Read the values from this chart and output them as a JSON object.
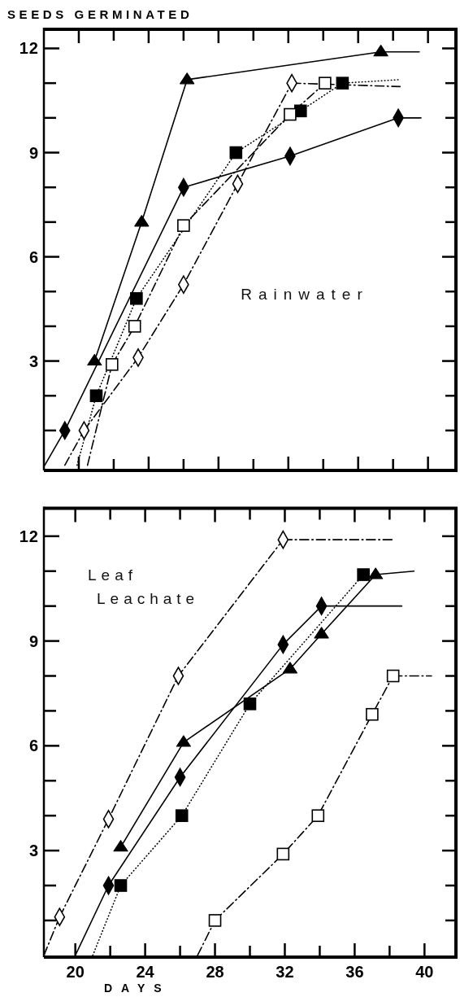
{
  "chart_data": [
    {
      "type": "line",
      "ylabel": "SEEDS GERMINATED",
      "annotations": [
        "Rainwater"
      ],
      "xlim": [
        18.0,
        41.6
      ],
      "ylim": [
        -0.15,
        12.55
      ],
      "tick_labels": "y",
      "xticks": [
        20,
        {
          "value": 22,
          "label": null
        },
        24,
        {
          "value": 26,
          "label": null
        },
        28,
        {
          "value": 30,
          "label": null
        },
        32,
        {
          "value": 34,
          "label": null
        },
        36,
        {
          "value": 38,
          "label": null
        },
        40
      ],
      "yticks": [
        {
          "value": 1,
          "label": null
        },
        {
          "value": 2,
          "label": null
        },
        3,
        {
          "value": 4,
          "label": null
        },
        {
          "value": 5,
          "label": null
        },
        6,
        {
          "value": 7,
          "label": null
        },
        {
          "value": 8,
          "label": null
        },
        9,
        {
          "value": 10,
          "label": null
        },
        {
          "value": 11,
          "label": null
        },
        12
      ],
      "series": [
        {
          "color": "#000000",
          "marker": "triangle",
          "line_style": "solid",
          "x": [
            20.9,
            23.6,
            26.2,
            37.3
          ],
          "values": [
            3,
            7,
            11.1,
            11.9
          ]
        },
        {
          "color": "#000000",
          "marker": "none",
          "line_style": "solid",
          "x": [
            37.3,
            39.5
          ],
          "values": [
            11.9,
            11.9
          ]
        },
        {
          "color": "#000000",
          "marker": "diamond",
          "line_style": "solid",
          "x": [
            19.2,
            26.0,
            32.1,
            38.3
          ],
          "values": [
            1,
            8,
            8.9,
            10
          ]
        },
        {
          "color": "#000000",
          "marker": "none",
          "line_style": "solid",
          "x": [
            18.05,
            19.2
          ],
          "values": [
            0,
            1
          ]
        },
        {
          "color": "#000000",
          "marker": "none",
          "line_style": "solid",
          "x": [
            38.3,
            39.6
          ],
          "values": [
            10,
            10
          ]
        },
        {
          "color": "#000000",
          "marker": "square",
          "line_style": "dotted",
          "x": [
            21.0,
            23.3,
            29.0,
            32.7,
            35.1
          ],
          "values": [
            2,
            4.8,
            9,
            10.2,
            11
          ]
        },
        {
          "color": "#000000",
          "marker": "none",
          "line_style": "dotted",
          "x": [
            19.9,
            21.0
          ],
          "values": [
            0,
            2
          ]
        },
        {
          "color": "#000000",
          "marker": "none",
          "line_style": "dotted",
          "x": [
            35.1,
            38.4
          ],
          "values": [
            11,
            11.1
          ]
        },
        {
          "color": "#000000",
          "colors": [
            "#ffffff",
            "#ffffff",
            "#ffffff",
            "#ffffff",
            "#ffffff"
          ],
          "marker": "square",
          "line_style": "dashdot",
          "x": [
            21.9,
            23.2,
            26.0,
            32.1,
            34.1
          ],
          "values": [
            2.9,
            4,
            6.9,
            10.1,
            11
          ]
        },
        {
          "color": "#000000",
          "marker": "none",
          "line_style": "dashdot",
          "x": [
            20.5,
            21.9
          ],
          "values": [
            0,
            2.9
          ]
        },
        {
          "color": "#000000",
          "colors": [
            "#ffffff",
            "#ffffff",
            "#ffffff",
            "#ffffff",
            "#ffffff"
          ],
          "marker": "diamond",
          "line_style": "dashdot",
          "x": [
            20.3,
            23.4,
            26.0,
            29.1,
            32.2
          ],
          "values": [
            1,
            3.1,
            5.2,
            8.1,
            11
          ]
        },
        {
          "color": "#000000",
          "marker": "none",
          "line_style": "dashdot",
          "x": [
            19.2,
            20.3
          ],
          "values": [
            0,
            1
          ]
        },
        {
          "color": "#000000",
          "marker": "none",
          "line_style": "dashdot",
          "x": [
            32.2,
            38.4
          ],
          "values": [
            11,
            10.9
          ]
        }
      ]
    },
    {
      "type": "line",
      "xlabel": "DAYS",
      "annotations": [
        "Leaf Leachate"
      ],
      "xlim": [
        18.2,
        41.8
      ],
      "ylim": [
        -0.05,
        12.8
      ],
      "xticks": [
        20,
        {
          "value": 22,
          "label": null
        },
        24,
        {
          "value": 26,
          "label": null
        },
        28,
        {
          "value": 30,
          "label": null
        },
        32,
        {
          "value": 34,
          "label": null
        },
        36,
        {
          "value": 38,
          "label": null
        },
        40
      ],
      "yticks": [
        {
          "value": 1,
          "label": null
        },
        {
          "value": 2,
          "label": null
        },
        3,
        {
          "value": 4,
          "label": null
        },
        {
          "value": 5,
          "label": null
        },
        6,
        {
          "value": 7,
          "label": null
        },
        {
          "value": 8,
          "label": null
        },
        9,
        {
          "value": 10,
          "label": null
        },
        {
          "value": 11,
          "label": null
        },
        12
      ],
      "series": [
        {
          "color": "#000000",
          "marker": "triangle",
          "line_style": "solid",
          "x": [
            22.6,
            26.2,
            32.3,
            34.1,
            37.2
          ],
          "values": [
            3.1,
            6.1,
            8.2,
            9.2,
            10.9
          ]
        },
        {
          "color": "#000000",
          "marker": "none",
          "line_style": "solid",
          "x": [
            37.2,
            39.4
          ],
          "values": [
            10.9,
            11
          ]
        },
        {
          "color": "#000000",
          "marker": "diamond",
          "line_style": "solid",
          "x": [
            21.9,
            26.0,
            31.9,
            34.1
          ],
          "values": [
            2,
            5.1,
            8.9,
            10
          ]
        },
        {
          "color": "#000000",
          "marker": "none",
          "line_style": "solid",
          "x": [
            20.0,
            21.9
          ],
          "values": [
            0,
            2
          ]
        },
        {
          "color": "#000000",
          "marker": "none",
          "line_style": "solid",
          "x": [
            34.1,
            38.7
          ],
          "values": [
            10,
            10
          ]
        },
        {
          "color": "#000000",
          "marker": "square",
          "line_style": "dotted",
          "x": [
            22.6,
            26.1,
            30.0,
            36.5
          ],
          "values": [
            2,
            4,
            7.2,
            10.9
          ]
        },
        {
          "color": "#000000",
          "marker": "none",
          "line_style": "dotted",
          "x": [
            21.0,
            22.6
          ],
          "values": [
            0,
            2
          ]
        },
        {
          "color": "#000000",
          "colors": [
            "#ffffff",
            "#ffffff",
            "#ffffff",
            "#ffffff",
            "#ffffff"
          ],
          "marker": "square",
          "line_style": "dashdot",
          "x": [
            28.0,
            31.9,
            33.9,
            37.0,
            38.2
          ],
          "values": [
            1,
            2.9,
            4,
            6.9,
            8
          ]
        },
        {
          "color": "#000000",
          "marker": "none",
          "line_style": "dashdot",
          "x": [
            27.0,
            28.0
          ],
          "values": [
            0,
            1
          ]
        },
        {
          "color": "#000000",
          "marker": "none",
          "line_style": "dashdot",
          "x": [
            38.2,
            40.4
          ],
          "values": [
            8,
            8
          ]
        },
        {
          "color": "#000000",
          "colors": [
            "#ffffff",
            "#ffffff",
            "#ffffff",
            "#ffffff"
          ],
          "marker": "diamond",
          "line_style": "dashdot",
          "x": [
            19.1,
            21.9,
            25.9,
            31.9
          ],
          "values": [
            1.1,
            3.9,
            8,
            11.9
          ]
        },
        {
          "color": "#000000",
          "marker": "none",
          "line_style": "dashdot",
          "x": [
            18.2,
            19.1
          ],
          "values": [
            0,
            1.1
          ]
        },
        {
          "color": "#000000",
          "marker": "none",
          "line_style": "dashdot",
          "x": [
            31.9,
            38.2
          ],
          "values": [
            11.9,
            11.9
          ]
        }
      ]
    }
  ]
}
